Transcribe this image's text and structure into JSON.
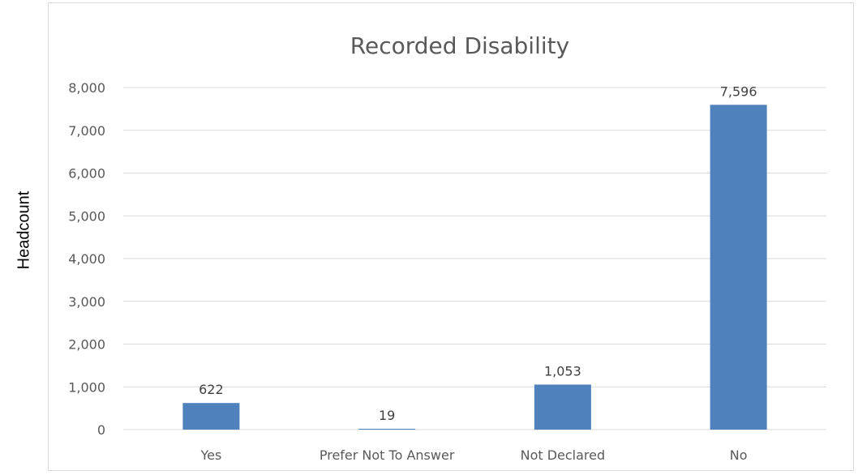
{
  "chart_data": {
    "type": "bar",
    "title": "Recorded Disability",
    "xlabel": "",
    "ylabel": "Headcount",
    "categories": [
      "Yes",
      "Prefer Not To Answer",
      "Not Declared",
      "No"
    ],
    "values": [
      622,
      19,
      1053,
      7596
    ],
    "data_labels": [
      "622",
      "19",
      "1,053",
      "7,596"
    ],
    "ylim": [
      0,
      8000
    ],
    "yticks": [
      0,
      1000,
      2000,
      3000,
      4000,
      5000,
      6000,
      7000,
      8000
    ],
    "ytick_labels": [
      "0",
      "1,000",
      "2,000",
      "3,000",
      "4,000",
      "5,000",
      "6,000",
      "7,000",
      "8,000"
    ],
    "grid": true,
    "legend": "none",
    "bar_color": "#4f81bd",
    "grid_color": "#d9d9d9"
  }
}
